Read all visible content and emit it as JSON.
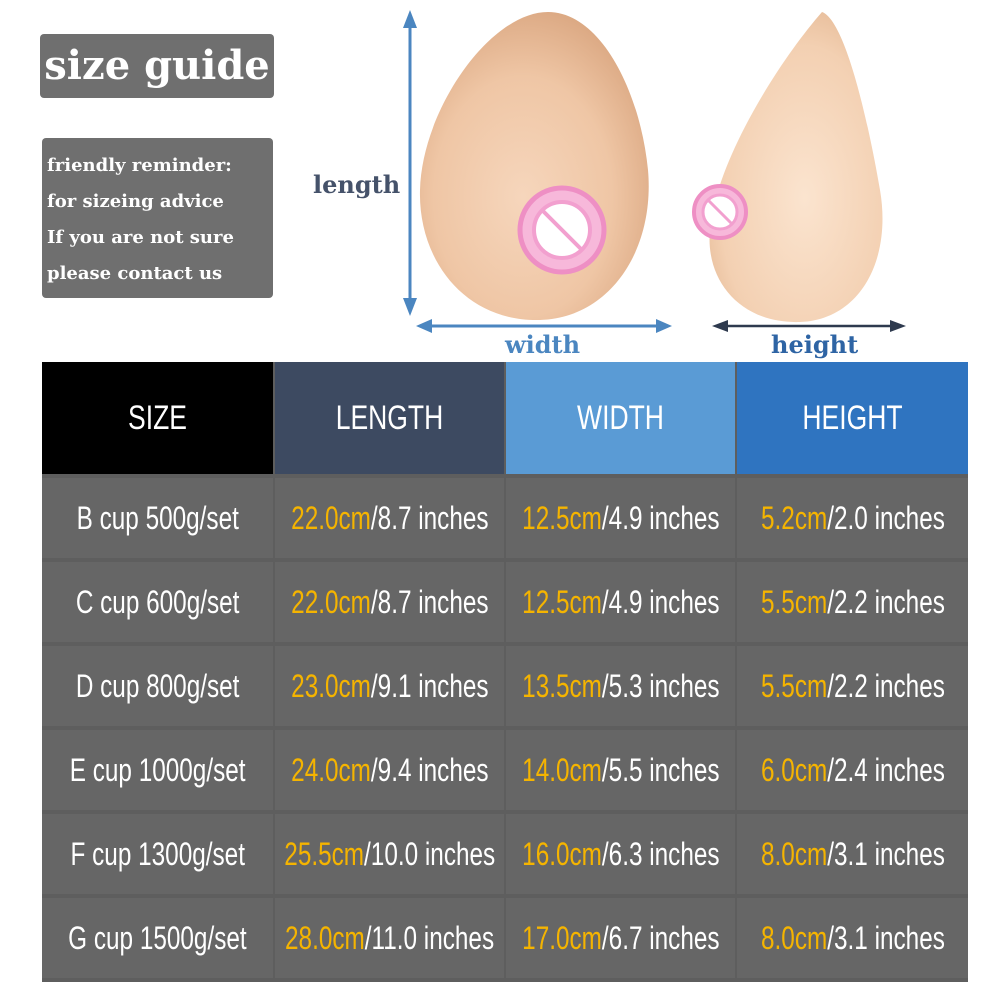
{
  "title": "size guide",
  "reminder": {
    "lines": [
      "friendly reminder:",
      "for sizeing advice",
      "If you are not sure",
      "please contact us"
    ]
  },
  "dimension_labels": {
    "length": "length",
    "width": "width",
    "height": "height"
  },
  "colors": {
    "size_header": "#000000",
    "length_header": "#3d4a61",
    "width_header": "#5a9bd5",
    "height_header": "#2f74c0",
    "cm_value": "#f5b400",
    "label_box": "#6f6f6f"
  },
  "table": {
    "headers": [
      "SIZE",
      "LENGTH",
      "WIDTH",
      "HEIGHT"
    ],
    "rows": [
      {
        "size": "B cup 500g/set",
        "length_cm": "22.0cm",
        "length_in": "/8.7 inches",
        "width_cm": "12.5cm",
        "width_in": "/4.9 inches",
        "height_cm": "5.2cm",
        "height_in": "/2.0 inches"
      },
      {
        "size": "C cup 600g/set",
        "length_cm": "22.0cm",
        "length_in": "/8.7 inches",
        "width_cm": "12.5cm",
        "width_in": "/4.9 inches",
        "height_cm": "5.5cm",
        "height_in": "/2.2 inches"
      },
      {
        "size": "D cup 800g/set",
        "length_cm": "23.0cm",
        "length_in": "/9.1 inches",
        "width_cm": "13.5cm",
        "width_in": "/5.3 inches",
        "height_cm": "5.5cm",
        "height_in": "/2.2 inches"
      },
      {
        "size": "E cup 1000g/set",
        "length_cm": "24.0cm",
        "length_in": "/9.4 inches",
        "width_cm": "14.0cm",
        "width_in": "/5.5 inches",
        "height_cm": "6.0cm",
        "height_in": "/2.4 inches"
      },
      {
        "size": "F cup 1300g/set",
        "length_cm": "25.5cm",
        "length_in": "/10.0 inches",
        "width_cm": "16.0cm",
        "width_in": "/6.3 inches",
        "height_cm": "8.0cm",
        "height_in": "/3.1 inches"
      },
      {
        "size": "G cup 1500g/set",
        "length_cm": "28.0cm",
        "length_in": "/11.0 inches",
        "width_cm": "17.0cm",
        "width_in": "/6.7 inches",
        "height_cm": "8.0cm",
        "height_in": "/3.1 inches"
      }
    ]
  }
}
